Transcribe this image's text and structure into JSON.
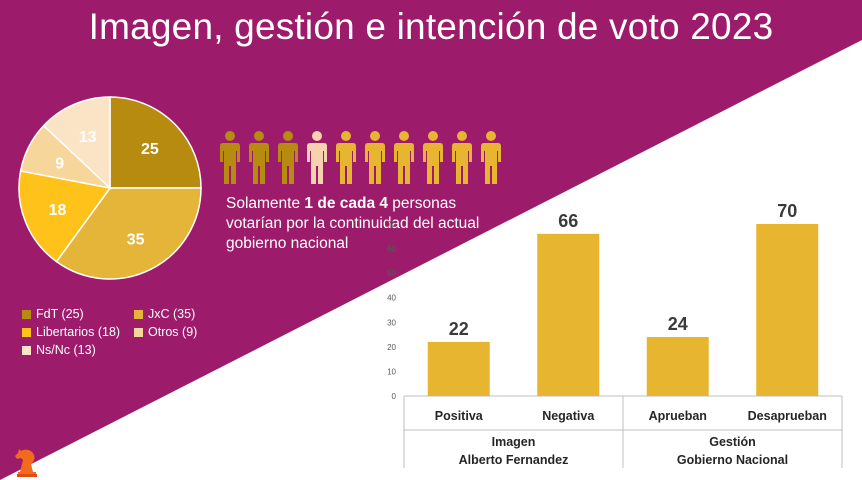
{
  "title": "Imagen, gestión e intención de voto 2023",
  "people_note": {
    "prefix": "Solamente ",
    "bold": "1 de cada 4",
    "suffix": " personas votarían por la continuidad del actual gobierno nacional",
    "total": 10,
    "highlighted_index": 3
  },
  "colors": {
    "magenta": "#9c1c6b",
    "gold": "#e8b530",
    "dark_gold": "#b78a10",
    "highlight_person": "#f6d2b0"
  },
  "chart_data": [
    {
      "type": "pie",
      "slices": [
        {
          "label": "FdT",
          "value": 25,
          "legend": "FdT (25)",
          "color": "#b78a10"
        },
        {
          "label": "JxC",
          "value": 35,
          "legend": "JxC (35)",
          "color": "#e5b53a"
        },
        {
          "label": "Libertarios",
          "value": 18,
          "legend": "Libertarios (18)",
          "color": "#ffc21a"
        },
        {
          "label": "Otros",
          "value": 9,
          "legend": "Otros (9)",
          "color": "#f6d69b"
        },
        {
          "label": "Ns/Nc",
          "value": 13,
          "legend": "Ns/Nc (13)",
          "color": "#fbe4c6"
        }
      ],
      "legend_position": "bottom"
    },
    {
      "type": "bar",
      "categories": [
        "Positiva",
        "Negativa",
        "Aprueban",
        "Desaprueban"
      ],
      "values": [
        22,
        66,
        24,
        70
      ],
      "ylim": [
        0,
        70
      ],
      "yticks": [
        0,
        10,
        20,
        30,
        40,
        50,
        60,
        70
      ],
      "groups": [
        {
          "line1": "Imagen",
          "line2": "Alberto Fernandez"
        },
        {
          "line1": "Gestión",
          "line2": "Gobierno Nacional"
        }
      ],
      "color": "#e8b530",
      "grid": false
    }
  ]
}
